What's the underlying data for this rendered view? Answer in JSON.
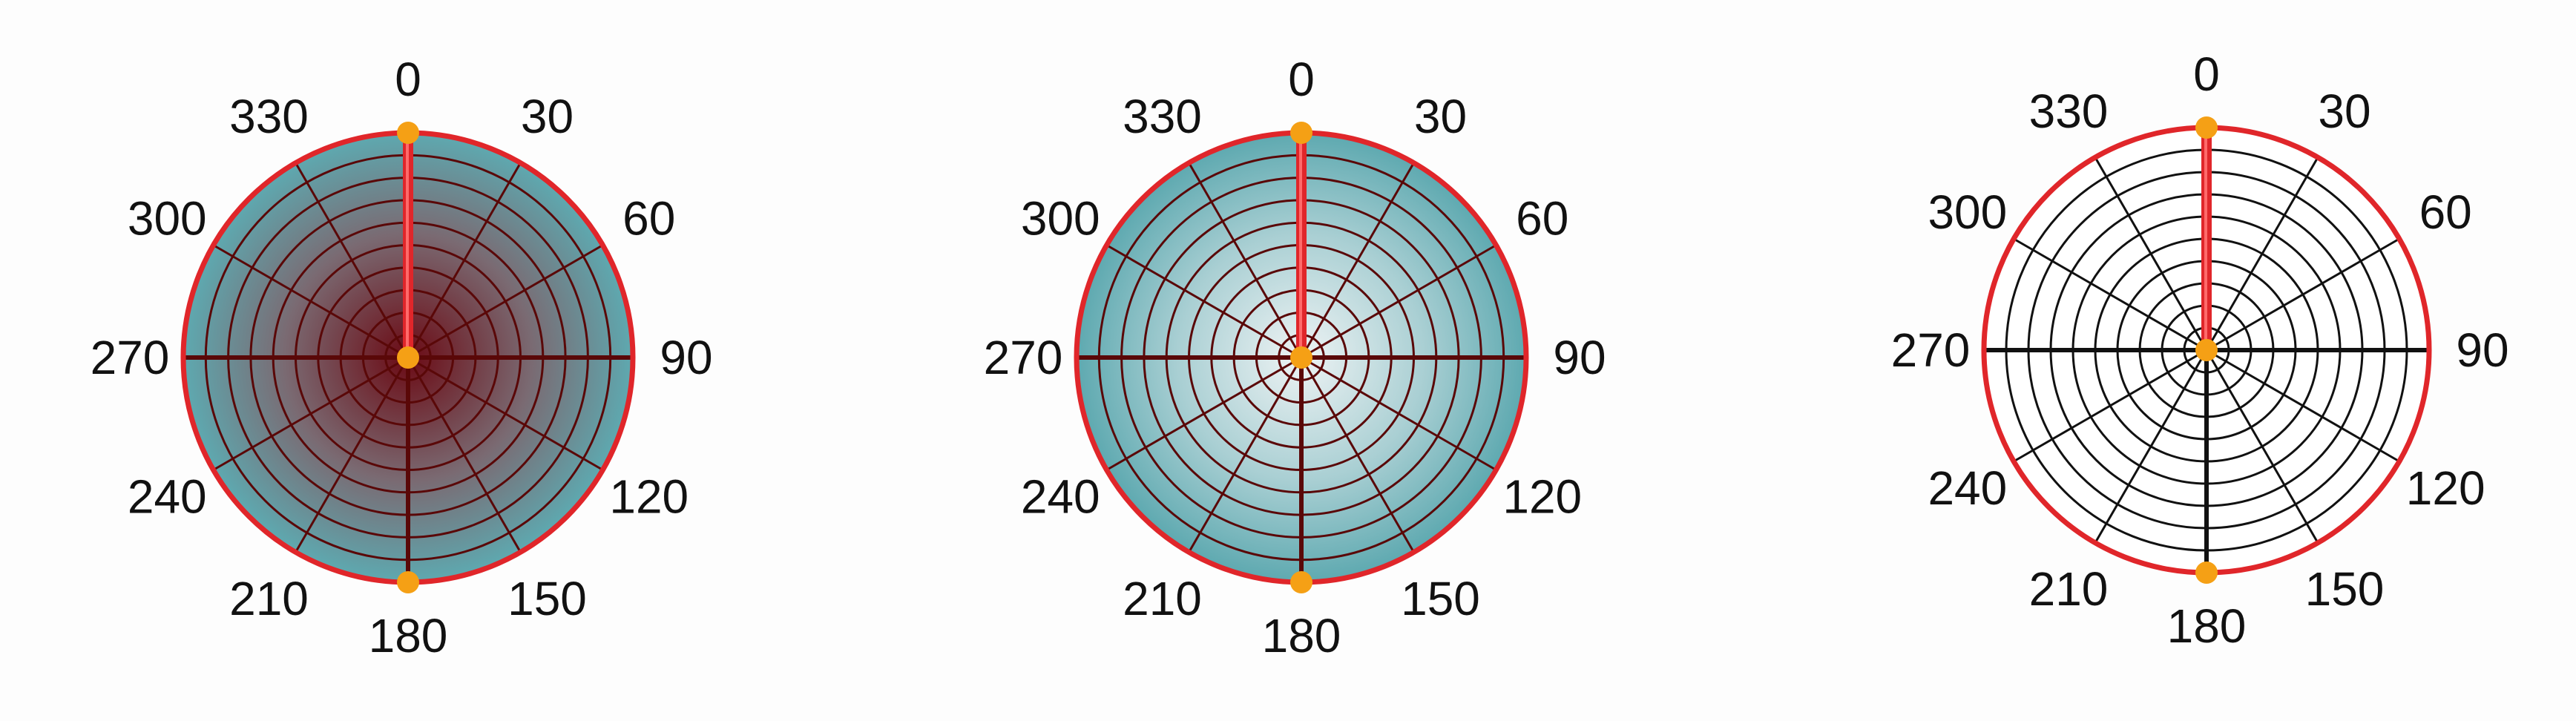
{
  "angle_labels": [
    "0",
    "30",
    "60",
    "90",
    "120",
    "150",
    "180",
    "210",
    "240",
    "270",
    "300",
    "330"
  ],
  "dials": [
    {
      "fill_style": "gradient",
      "gradient_center": "#6b0a14",
      "gradient_mid": "#7a6a72",
      "gradient_edge": "#5ea9b0",
      "grid_color": "#5a0808",
      "rings": 9,
      "spokes": 12
    },
    {
      "fill_style": "gradient",
      "gradient_center": "#eef3f4",
      "gradient_mid": "#a9cfd3",
      "gradient_edge": "#5ea9b0",
      "grid_color": "#5a0808",
      "rings": 9,
      "spokes": 12
    },
    {
      "fill_style": "plain",
      "fill": "#ffffff",
      "grid_color": "#111111",
      "rings": 9,
      "spokes": 12
    }
  ],
  "colors": {
    "rim": "#e0262a",
    "needle": "#e0262a",
    "needle_highlight": "#ff6a6a",
    "marker": "#f5a015",
    "label": "#111111"
  }
}
